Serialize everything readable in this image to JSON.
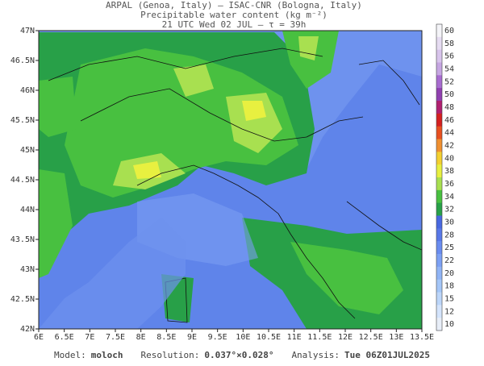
{
  "header": {
    "lines": [
      "ARPAL (Genoa, Italy)  —  ISAC-CNR (Bologna, Italy)",
      "Precipitable water content (kg m⁻²)",
      "21 UTC Wed 02 JUL  —  τ = 39h"
    ]
  },
  "map": {
    "lat_labels": [
      "47N",
      "46.5N",
      "46N",
      "45.5N",
      "45N",
      "44.5N",
      "44N",
      "43.5N",
      "43N",
      "42.5N",
      "42N"
    ],
    "lon_labels": [
      "6E",
      "6.5E",
      "7E",
      "7.5E",
      "8E",
      "8.5E",
      "9E",
      "9.5E",
      "10E",
      "10.5E",
      "11E",
      "11.5E",
      "12E",
      "12.5E",
      "13E",
      "13.5E"
    ]
  },
  "colorbar": {
    "labels": [
      "60",
      "58",
      "56",
      "54",
      "52",
      "50",
      "48",
      "46",
      "44",
      "42",
      "40",
      "38",
      "36",
      "34",
      "32",
      "30",
      "28",
      "25",
      "22",
      "20",
      "18",
      "15",
      "12",
      "10"
    ],
    "colors": [
      "#f4f4f8",
      "#e6dcf2",
      "#d8c4ec",
      "#c6a6e2",
      "#a86cd0",
      "#9040b0",
      "#b02070",
      "#d42020",
      "#e85020",
      "#f09030",
      "#f4d030",
      "#e8f040",
      "#a8e050",
      "#48c040",
      "#28a048",
      "#4868e0",
      "#5878e8",
      "#6a8cf0",
      "#7ca0f4",
      "#90b4f6",
      "#a4c6f8",
      "#bcd6fa",
      "#d4e4fc",
      "#e8eef8"
    ]
  },
  "footer": {
    "items": [
      {
        "label": "Model:",
        "value": "moloch"
      },
      {
        "label": "Resolution:",
        "value": "0.037°×0.028°"
      },
      {
        "label": "Analysis:",
        "value": "Tue 06Z01JUL2025"
      }
    ]
  }
}
